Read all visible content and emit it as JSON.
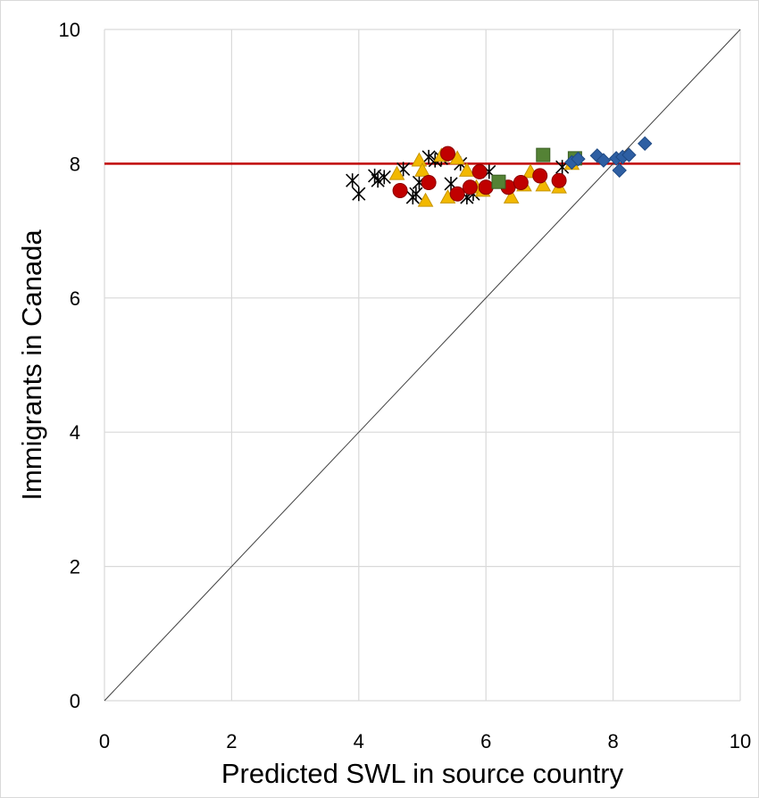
{
  "chart_data": {
    "type": "scatter",
    "xlabel": "Predicted SWL in source country",
    "ylabel": "Immigrants in Canada",
    "xlim": [
      0,
      10
    ],
    "ylim": [
      0,
      10
    ],
    "xticks": [
      "0",
      "2",
      "4",
      "6",
      "8",
      "10"
    ],
    "yticks": [
      "0",
      "2",
      "4",
      "6",
      "8",
      "10"
    ],
    "grid": true,
    "legend": "none",
    "reference_lines": [
      {
        "kind": "horizontal",
        "y": 8,
        "color": "#c00000"
      },
      {
        "kind": "diagonal",
        "from": [
          0,
          0
        ],
        "to": [
          10,
          10
        ],
        "color": "#404040"
      }
    ],
    "series": [
      {
        "marker": "star",
        "color": "#000000",
        "points": [
          [
            3.9,
            7.75
          ],
          [
            4.0,
            7.55
          ],
          [
            4.25,
            7.82
          ],
          [
            4.3,
            7.75
          ],
          [
            4.4,
            7.8
          ],
          [
            4.7,
            7.92
          ],
          [
            4.85,
            7.5
          ],
          [
            4.9,
            7.55
          ],
          [
            4.95,
            7.72
          ],
          [
            5.1,
            8.1
          ],
          [
            5.2,
            8.05
          ],
          [
            5.3,
            8.08
          ],
          [
            5.45,
            7.7
          ],
          [
            5.6,
            8.0
          ],
          [
            5.7,
            7.5
          ],
          [
            5.8,
            7.55
          ],
          [
            6.05,
            7.88
          ],
          [
            7.2,
            7.95
          ]
        ]
      },
      {
        "marker": "triangle",
        "color": "#f2b800",
        "points": [
          [
            4.6,
            7.85
          ],
          [
            4.95,
            8.05
          ],
          [
            5.0,
            7.9
          ],
          [
            5.05,
            7.45
          ],
          [
            5.3,
            8.12
          ],
          [
            5.4,
            7.5
          ],
          [
            5.55,
            8.08
          ],
          [
            5.7,
            7.9
          ],
          [
            5.85,
            7.65
          ],
          [
            5.95,
            7.6
          ],
          [
            6.4,
            7.5
          ],
          [
            6.6,
            7.68
          ],
          [
            6.7,
            7.88
          ],
          [
            6.9,
            7.68
          ],
          [
            7.15,
            7.65
          ],
          [
            7.35,
            8.0
          ]
        ]
      },
      {
        "marker": "circle",
        "color": "#c00000",
        "points": [
          [
            4.65,
            7.6
          ],
          [
            5.1,
            7.72
          ],
          [
            5.4,
            8.15
          ],
          [
            5.55,
            7.55
          ],
          [
            5.75,
            7.65
          ],
          [
            5.9,
            7.88
          ],
          [
            6.0,
            7.65
          ],
          [
            6.35,
            7.65
          ],
          [
            6.55,
            7.72
          ],
          [
            6.85,
            7.82
          ],
          [
            7.15,
            7.75
          ]
        ]
      },
      {
        "marker": "square",
        "color": "#548235",
        "points": [
          [
            6.2,
            7.73
          ],
          [
            6.9,
            8.13
          ],
          [
            7.4,
            8.08
          ]
        ]
      },
      {
        "marker": "diamond",
        "color": "#2e5fa3",
        "points": [
          [
            7.35,
            8.02
          ],
          [
            7.45,
            8.07
          ],
          [
            7.75,
            8.12
          ],
          [
            7.85,
            8.05
          ],
          [
            8.05,
            8.08
          ],
          [
            8.1,
            7.9
          ],
          [
            8.15,
            8.1
          ],
          [
            8.25,
            8.13
          ],
          [
            8.5,
            8.3
          ]
        ]
      }
    ]
  }
}
